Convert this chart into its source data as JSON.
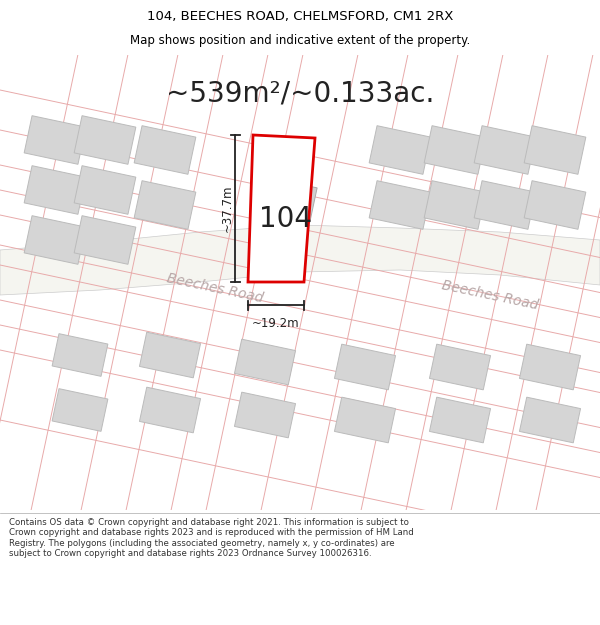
{
  "title_line1": "104, BEECHES ROAD, CHELMSFORD, CM1 2RX",
  "title_line2": "Map shows position and indicative extent of the property.",
  "area_text": "~539m²/~0.133ac.",
  "label_104": "104",
  "dim_width": "~19.2m",
  "dim_height": "~37.7m",
  "road_label": "Beeches Road",
  "road_label2": "Beeches Road",
  "copyright_text": "Contains OS data © Crown copyright and database right 2021. This information is subject to Crown copyright and database rights 2023 and is reproduced with the permission of HM Land Registry. The polygons (including the associated geometry, namely x, y co-ordinates) are subject to Crown copyright and database rights 2023 Ordnance Survey 100026316.",
  "bg_map_color": "#edf2ed",
  "bg_title_color": "#ffffff",
  "bg_footer_color": "#ffffff",
  "main_plot_edge": "#dd0000",
  "plot_line_color": "#e8aaaa",
  "building_fill": "#d8d8d8",
  "building_edge": "#bbbbbb",
  "road_fill": "#f5f5f0",
  "road_edge": "#cccccc",
  "road_text_color": "#b8a8a8",
  "dim_line_color": "#222222",
  "title_fontsize": 9.5,
  "subtitle_fontsize": 8.5,
  "area_fontsize": 20,
  "label_fontsize": 20,
  "dim_fontsize": 8.5,
  "road_fontsize": 10,
  "footer_fontsize": 6.2
}
